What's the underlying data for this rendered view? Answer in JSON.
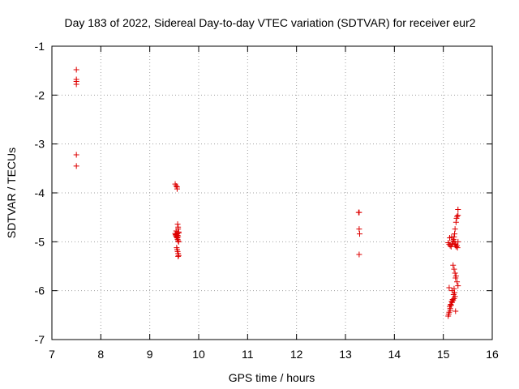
{
  "chart_data": {
    "type": "scatter",
    "title": "Day 183 of 2022, Sidereal Day-to-day VTEC variation (SDTVAR) for receiver eur2",
    "xlabel": "GPS time / hours",
    "ylabel": "SDTVAR / TECUs",
    "xlim": [
      7,
      16
    ],
    "ylim": [
      -7,
      -1
    ],
    "xticks": [
      7,
      8,
      9,
      10,
      11,
      12,
      13,
      14,
      15,
      16
    ],
    "yticks": [
      -1,
      -2,
      -3,
      -4,
      -5,
      -6,
      -7
    ],
    "xtick_labels": [
      "7",
      "8",
      "9",
      "10",
      "11",
      "12",
      "13",
      "14",
      "15",
      "16"
    ],
    "ytick_labels": [
      "-1",
      "-2",
      "-3",
      "-4",
      "-5",
      "-6",
      "-7"
    ],
    "grid": true,
    "marker": "+",
    "color": "#dd0000",
    "series": [
      {
        "name": "eur2",
        "x": [
          7.5,
          7.5,
          7.5,
          7.5,
          7.5,
          7.5,
          9.52,
          9.54,
          9.56,
          9.56,
          9.57,
          9.58,
          9.58,
          9.59,
          9.52,
          9.53,
          9.54,
          9.55,
          9.56,
          9.57,
          9.58,
          9.59,
          9.53,
          9.55,
          9.57,
          9.59,
          9.54,
          9.56,
          9.58,
          9.55,
          9.56,
          9.57,
          9.58,
          9.59,
          9.58,
          13.27,
          13.28,
          13.28,
          13.29,
          13.28,
          15.1,
          15.12,
          15.14,
          15.16,
          15.18,
          15.2,
          15.22,
          15.24,
          15.26,
          15.28,
          15.3,
          15.13,
          15.17,
          15.21,
          15.25,
          15.29,
          15.22,
          15.24,
          15.26,
          15.28,
          15.3,
          15.23,
          15.27,
          15.3,
          15.2,
          15.22,
          15.24,
          15.26,
          15.25,
          15.28,
          15.3,
          15.1,
          15.12,
          15.14,
          15.16,
          15.18,
          15.2,
          15.22,
          15.24,
          15.13,
          15.15,
          15.17,
          15.19,
          15.21,
          15.23,
          15.11,
          15.14,
          15.18,
          15.22,
          15.25,
          15.12
        ],
        "y": [
          -1.48,
          -1.68,
          -1.72,
          -1.78,
          -3.22,
          -3.45,
          -3.82,
          -3.86,
          -3.88,
          -3.92,
          -4.64,
          -4.7,
          -4.74,
          -4.8,
          -4.83,
          -4.86,
          -4.88,
          -4.9,
          -4.92,
          -4.95,
          -4.98,
          -5.0,
          -4.85,
          -4.9,
          -4.87,
          -4.82,
          -4.78,
          -4.84,
          -4.9,
          -5.12,
          -5.16,
          -5.2,
          -5.24,
          -5.28,
          -5.3,
          -4.4,
          -4.4,
          -4.74,
          -4.84,
          -5.26,
          -5.02,
          -5.05,
          -5.08,
          -5.1,
          -5.04,
          -4.98,
          -5.0,
          -5.06,
          -5.1,
          -5.08,
          -5.0,
          -4.92,
          -4.9,
          -4.95,
          -5.05,
          -5.12,
          -4.9,
          -4.74,
          -4.6,
          -4.48,
          -4.46,
          -4.84,
          -4.52,
          -4.34,
          -5.48,
          -5.56,
          -5.64,
          -5.7,
          -5.74,
          -5.82,
          -5.9,
          -6.52,
          -6.44,
          -6.36,
          -6.3,
          -6.24,
          -6.2,
          -6.16,
          -6.12,
          -6.32,
          -6.28,
          -6.22,
          -6.18,
          -6.08,
          -6.04,
          -6.48,
          -6.4,
          -6.0,
          -5.96,
          -6.42,
          -5.94
        ]
      }
    ]
  }
}
